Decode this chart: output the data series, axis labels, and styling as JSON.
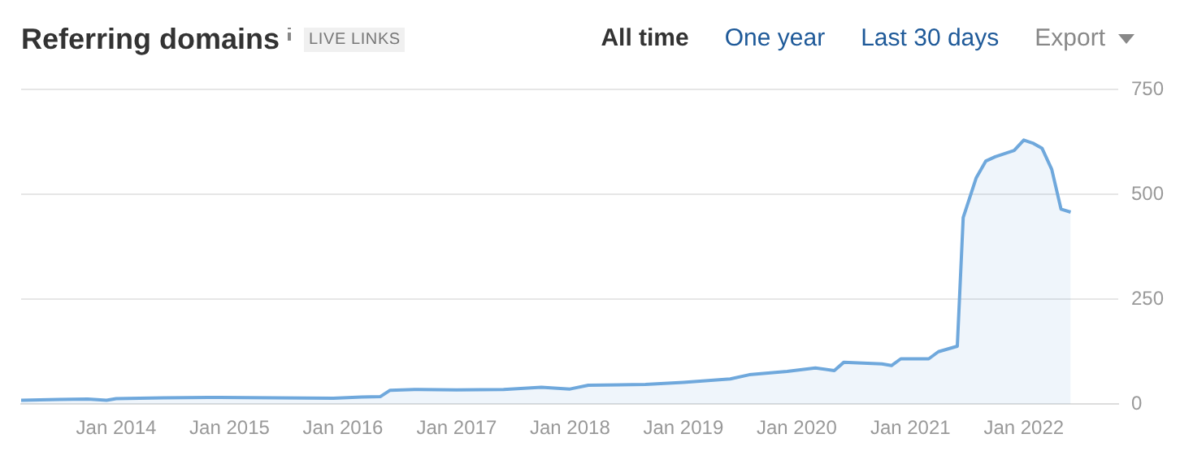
{
  "chart_data": {
    "type": "area",
    "title": "Referring domains",
    "subtitle": "LIVE LINKS",
    "annotations": [
      "All time",
      "One year",
      "Last 30 days",
      "Export"
    ],
    "x": [
      "2013-03",
      "2013-07",
      "2013-10",
      "2013-12",
      "2014-01",
      "2014-06",
      "2014-12",
      "2015-06",
      "2015-12",
      "2016-03",
      "2016-05",
      "2016-06",
      "2016-09",
      "2017-01",
      "2017-06",
      "2017-10",
      "2018-01",
      "2018-03",
      "2018-09",
      "2019-01",
      "2019-06",
      "2019-08",
      "2019-12",
      "2020-03",
      "2020-05",
      "2020-06",
      "2020-10",
      "2020-11",
      "2020-12",
      "2021-03",
      "2021-04",
      "2021-06",
      "2021-06-20",
      "2021-07",
      "2021-08",
      "2021-09",
      "2021-10",
      "2021-12",
      "2022-01",
      "2022-02",
      "2022-03",
      "2022-04",
      "2022-05",
      "2022-06"
    ],
    "series": [
      {
        "color": "#6fa8dc",
        "values": [
          9,
          11,
          12,
          9,
          13,
          15,
          16,
          15,
          14,
          17,
          18,
          33,
          35,
          34,
          35,
          40,
          36,
          45,
          47,
          52,
          60,
          70,
          78,
          86,
          80,
          100,
          96,
          92,
          108,
          108,
          125,
          138,
          445,
          470,
          540,
          580,
          590,
          605,
          630,
          622,
          610,
          560,
          465,
          458
        ]
      }
    ],
    "xlim": [
      "2013-03",
      "2022-11"
    ],
    "xticks": [
      {
        "value": "2014-01",
        "label": "Jan 2014"
      },
      {
        "value": "2015-01",
        "label": "Jan 2015"
      },
      {
        "value": "2016-01",
        "label": "Jan 2016"
      },
      {
        "value": "2017-01",
        "label": "Jan 2017"
      },
      {
        "value": "2018-01",
        "label": "Jan 2018"
      },
      {
        "value": "2019-01",
        "label": "Jan 2019"
      },
      {
        "value": "2020-01",
        "label": "Jan 2020"
      },
      {
        "value": "2021-01",
        "label": "Jan 2021"
      },
      {
        "value": "2022-01",
        "label": "Jan 2022"
      }
    ],
    "ylim": [
      0,
      750
    ],
    "yticks": [
      0,
      250,
      500,
      750
    ],
    "grid": "y",
    "marker": "none"
  }
}
